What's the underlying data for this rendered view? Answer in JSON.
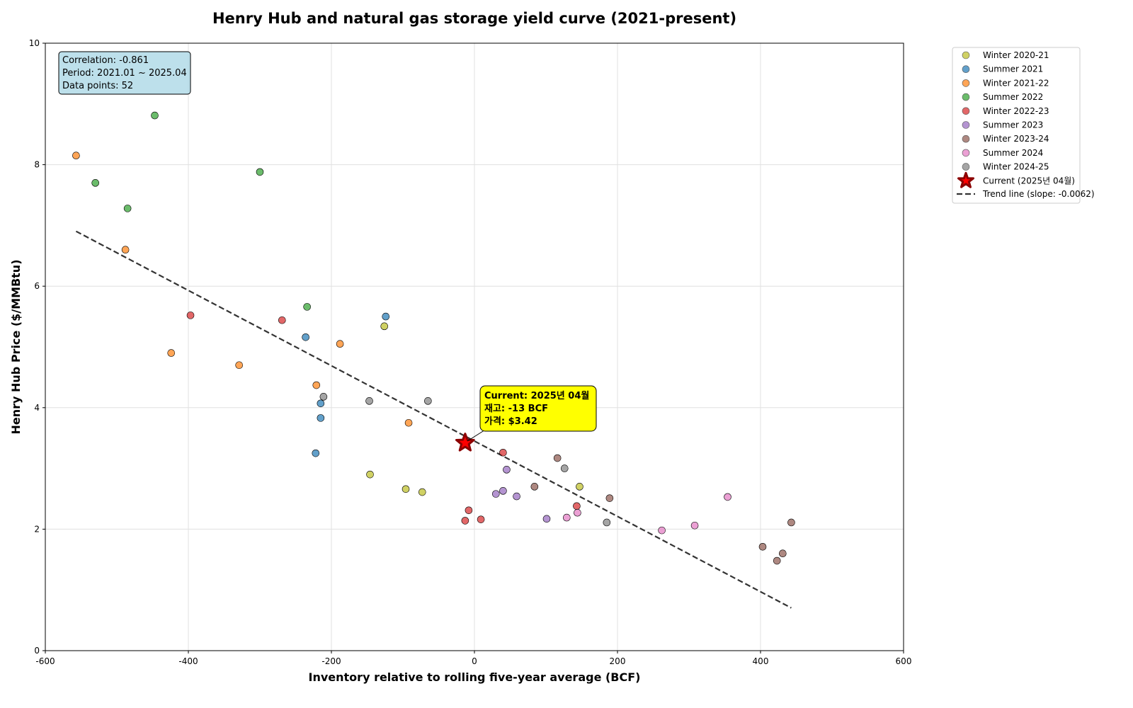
{
  "chart_data": {
    "type": "scatter",
    "title": "Henry Hub and natural gas storage yield curve (2021-present)",
    "xlabel": "Inventory relative to rolling five-year average (BCF)",
    "ylabel": "Henry Hub Price ($/MMBtu)",
    "xlim": [
      -600,
      600
    ],
    "ylim": [
      0,
      10
    ],
    "xticks": [
      -600,
      -400,
      -200,
      0,
      200,
      400,
      600
    ],
    "yticks": [
      0,
      2,
      4,
      6,
      8,
      10
    ],
    "grid": true,
    "legend_position": "outside-right",
    "series": [
      {
        "name": "Winter 2020-21",
        "color": "#bcbd22",
        "points": [
          [
            -126,
            5.34
          ],
          [
            -146,
            2.9
          ],
          [
            -96,
            2.66
          ],
          [
            -73,
            2.61
          ],
          [
            147,
            2.7
          ]
        ]
      },
      {
        "name": "Summer 2021",
        "color": "#1f77b4",
        "points": [
          [
            -124,
            5.5
          ],
          [
            -236,
            5.16
          ],
          [
            -215,
            4.07
          ],
          [
            -215,
            3.83
          ],
          [
            -222,
            3.25
          ]
        ]
      },
      {
        "name": "Winter 2021-22",
        "color": "#ff7f0e",
        "points": [
          [
            -557,
            8.15
          ],
          [
            -488,
            6.6
          ],
          [
            -424,
            4.9
          ],
          [
            -329,
            4.7
          ],
          [
            -188,
            5.05
          ],
          [
            -221,
            4.37
          ],
          [
            -92,
            3.75
          ]
        ]
      },
      {
        "name": "Summer 2022",
        "color": "#2ca02c",
        "points": [
          [
            -447,
            8.81
          ],
          [
            -530,
            7.7
          ],
          [
            -485,
            7.28
          ],
          [
            -300,
            7.88
          ],
          [
            -234,
            5.66
          ]
        ]
      },
      {
        "name": "Winter 2022-23",
        "color": "#d62728",
        "points": [
          [
            -397,
            5.52
          ],
          [
            -269,
            5.44
          ],
          [
            40,
            3.26
          ],
          [
            -8,
            2.31
          ],
          [
            -13,
            2.14
          ],
          [
            9,
            2.16
          ],
          [
            143,
            2.38
          ]
        ]
      },
      {
        "name": "Summer 2023",
        "color": "#9467bd",
        "points": [
          [
            45,
            2.98
          ],
          [
            30,
            2.58
          ],
          [
            40,
            2.63
          ],
          [
            59,
            2.54
          ],
          [
            101,
            2.17
          ]
        ]
      },
      {
        "name": "Winter 2023-24",
        "color": "#8c564b",
        "points": [
          [
            116,
            3.17
          ],
          [
            84,
            2.7
          ],
          [
            189,
            2.51
          ],
          [
            443,
            2.11
          ],
          [
            403,
            1.71
          ],
          [
            423,
            1.48
          ],
          [
            431,
            1.6
          ]
        ]
      },
      {
        "name": "Summer 2024",
        "color": "#e377c2",
        "points": [
          [
            354,
            2.53
          ],
          [
            308,
            2.06
          ],
          [
            262,
            1.98
          ],
          [
            129,
            2.19
          ],
          [
            144,
            2.27
          ]
        ]
      },
      {
        "name": "Winter 2024-25",
        "color": "#7f7f7f",
        "points": [
          [
            -211,
            4.18
          ],
          [
            -147,
            4.11
          ],
          [
            -65,
            4.11
          ],
          [
            126,
            3.0
          ],
          [
            185,
            2.11
          ]
        ]
      }
    ],
    "current": {
      "name": "Current (2025년 04월)",
      "x": -13,
      "y": 3.42,
      "color": "#8b0000",
      "annotation": [
        "Current: 2025년 04월",
        "재고: -13 BCF",
        "가격: $3.42"
      ]
    },
    "trend": {
      "name": "Trend line (slope: -0.0062)",
      "slope": -0.0062,
      "intercept": 3.45,
      "x_range": [
        -557,
        443
      ]
    },
    "stats": [
      "Correlation: -0.861",
      "Period: 2021.01 ~ 2025.04",
      "Data points: 52"
    ]
  }
}
